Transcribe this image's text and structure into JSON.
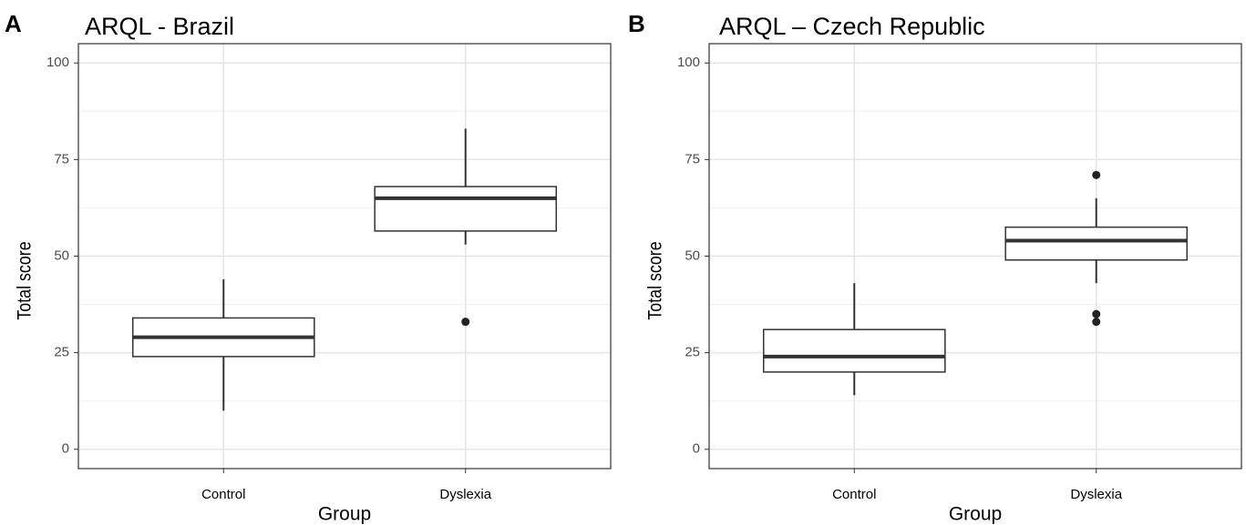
{
  "chart_data": [
    {
      "type": "box",
      "panel": "A",
      "title": "ARQL - Brazil",
      "x_label": "Group",
      "y_label": "Total score",
      "categories": [
        "Control",
        "Dyslexia"
      ],
      "boxes": [
        {
          "min": 10,
          "q1": 24,
          "median": 29,
          "q3": 34,
          "max": 44,
          "outliers": []
        },
        {
          "min": 53,
          "q1": 56.5,
          "median": 65,
          "q3": 68,
          "max": 83,
          "outliers": [
            33
          ]
        }
      ],
      "ylim": [
        -5,
        105
      ],
      "yticks": [
        0,
        25,
        50,
        75,
        100
      ],
      "minor_yticks": [
        12.5,
        37.5,
        62.5,
        87.5
      ],
      "grid": true
    },
    {
      "type": "box",
      "panel": "B",
      "title": "ARQL – Czech Republic",
      "x_label": "Group",
      "y_label": "Total score",
      "categories": [
        "Control",
        "Dyslexia"
      ],
      "boxes": [
        {
          "min": 14,
          "q1": 20,
          "median": 24,
          "q3": 31,
          "max": 43,
          "outliers": []
        },
        {
          "min": 43,
          "q1": 49,
          "median": 54,
          "q3": 57.5,
          "max": 65,
          "outliers": [
            71,
            35,
            33
          ]
        }
      ],
      "ylim": [
        -5,
        105
      ],
      "yticks": [
        0,
        25,
        50,
        75,
        100
      ],
      "minor_yticks": [
        12.5,
        37.5,
        62.5,
        87.5
      ],
      "grid": true
    }
  ]
}
